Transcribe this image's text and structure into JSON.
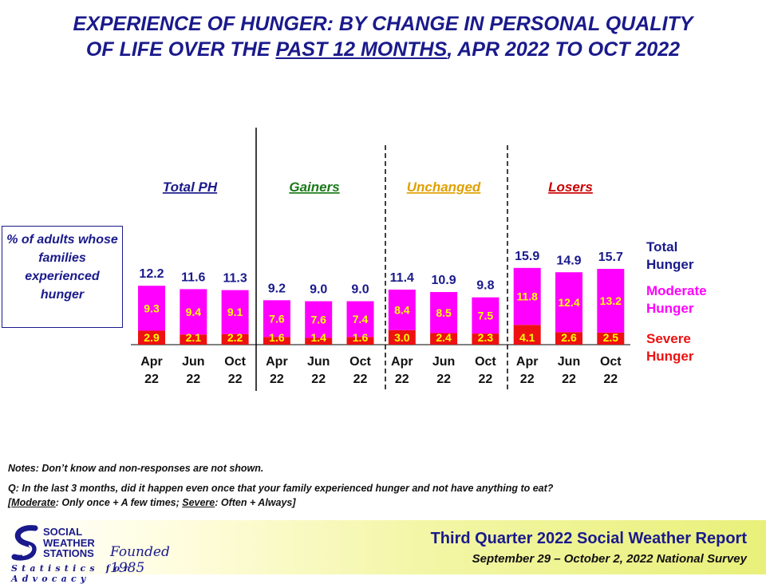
{
  "title": {
    "line1": "EXPERIENCE OF HUNGER: BY CHANGE IN PERSONAL QUALITY",
    "line2_pre": "OF LIFE OVER THE ",
    "line2_underlined": "PAST 12 MONTHS",
    "line2_post": ", APR 2022 TO OCT 2022"
  },
  "ylabel_box": "% of adults whose families experienced hunger",
  "colors": {
    "title": "#1a1a8c",
    "severe": "#ee1111",
    "moderate": "#ff00ff",
    "severe_text": "#ffff00",
    "moderate_text": "#ffff00",
    "total_text": "#1a1a8c",
    "gainers": "#1a7a1a",
    "unchanged": "#e0a000",
    "losers": "#cc0000"
  },
  "chart_data": {
    "type": "bar",
    "stacked": true,
    "title": "EXPERIENCE OF HUNGER: BY CHANGE IN PERSONAL QUALITY OF LIFE OVER THE PAST 12 MONTHS, APR 2022 TO OCT 2022",
    "ylabel": "% of adults whose families experienced hunger",
    "groups": [
      {
        "name": "Total PH",
        "color": "#1a1a8c"
      },
      {
        "name": "Gainers",
        "color": "#1a7a1a"
      },
      {
        "name": "Unchanged",
        "color": "#e0a000"
      },
      {
        "name": "Losers",
        "color": "#cc0000"
      }
    ],
    "categories": [
      [
        "Apr",
        "22"
      ],
      [
        "Jun",
        "22"
      ],
      [
        "Oct",
        "22"
      ],
      [
        "Apr",
        "22"
      ],
      [
        "Jun",
        "22"
      ],
      [
        "Oct",
        "22"
      ],
      [
        "Apr",
        "22"
      ],
      [
        "Jun",
        "22"
      ],
      [
        "Oct",
        "22"
      ],
      [
        "Apr",
        "22"
      ],
      [
        "Jun",
        "22"
      ],
      [
        "Oct",
        "22"
      ]
    ],
    "series": [
      {
        "name": "Severe Hunger",
        "values": [
          2.9,
          2.1,
          2.2,
          1.6,
          1.4,
          1.6,
          3.0,
          2.4,
          2.3,
          4.1,
          2.6,
          2.5
        ]
      },
      {
        "name": "Moderate Hunger",
        "values": [
          9.3,
          9.4,
          9.1,
          7.6,
          7.6,
          7.4,
          8.4,
          8.5,
          7.5,
          11.8,
          12.4,
          13.2
        ]
      },
      {
        "name": "Total Hunger",
        "values": [
          12.2,
          11.6,
          11.3,
          9.2,
          9.0,
          9.0,
          11.4,
          10.9,
          9.8,
          15.9,
          14.9,
          15.7
        ]
      }
    ],
    "legend": [
      "Total Hunger",
      "Moderate Hunger",
      "Severe Hunger"
    ],
    "legend_position": "right"
  },
  "notes": {
    "line1": "Notes: Don’t know and non-responses are not shown.",
    "q_line": "Q: In the last 3 months, did it happen even once that your family experienced hunger and not have anything to eat?",
    "def_open": "[",
    "def_moderate_word": "Moderate",
    "def_moderate_rest": ": Only once + A few times; ",
    "def_severe_word": "Severe",
    "def_severe_rest": ": Often + Always]"
  },
  "footer": {
    "logo_line1": "SOCIAL",
    "logo_line2": "WEATHER",
    "logo_line3": "STATIONS",
    "logo_founded": "Founded 1985",
    "logo_tagline": "Statistics for Advocacy",
    "report_title": "Third Quarter 2022 Social Weather Report",
    "report_subtitle": "September 29 – October 2, 2022 National Survey"
  }
}
